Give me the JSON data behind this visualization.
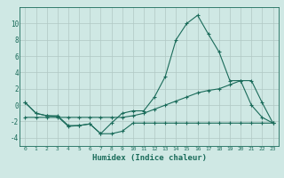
{
  "title": "",
  "xlabel": "Humidex (Indice chaleur)",
  "ylabel": "",
  "bg_color": "#cfe8e4",
  "grid_color": "#b0c8c4",
  "line_color": "#1a6b5a",
  "x_values": [
    0,
    1,
    2,
    3,
    4,
    5,
    6,
    7,
    8,
    9,
    10,
    11,
    12,
    13,
    14,
    15,
    16,
    17,
    18,
    19,
    20,
    21,
    22,
    23
  ],
  "curve_peak": [
    0.3,
    -1.0,
    -1.3,
    -1.3,
    -2.5,
    -2.5,
    -2.3,
    -3.5,
    -2.2,
    -1.0,
    -0.7,
    -0.7,
    1.0,
    3.5,
    8.0,
    10.0,
    11.0,
    8.7,
    6.5,
    3.0,
    3.0,
    0.0,
    -1.5,
    -2.2
  ],
  "curve_mid": [
    -1.5,
    -1.5,
    -1.5,
    -1.5,
    -1.5,
    -1.5,
    -1.5,
    -1.5,
    -1.5,
    -1.5,
    -1.3,
    -1.0,
    -0.5,
    0.0,
    0.5,
    1.0,
    1.5,
    1.8,
    2.0,
    2.5,
    3.0,
    3.0,
    0.3,
    -2.2
  ],
  "curve_low": [
    0.3,
    -1.0,
    -1.3,
    -1.4,
    -2.6,
    -2.5,
    -2.3,
    -3.5,
    -3.5,
    -3.2,
    -2.2,
    -2.2,
    -2.2,
    -2.2,
    -2.2,
    -2.2,
    -2.2,
    -2.2,
    -2.2,
    -2.2,
    -2.2,
    -2.2,
    -2.2,
    -2.2
  ],
  "ylim": [
    -5,
    12
  ],
  "yticks": [
    -4,
    -2,
    0,
    2,
    4,
    6,
    8,
    10
  ],
  "xlim": [
    -0.5,
    23.5
  ],
  "figsize": [
    3.2,
    2.0
  ],
  "dpi": 100
}
